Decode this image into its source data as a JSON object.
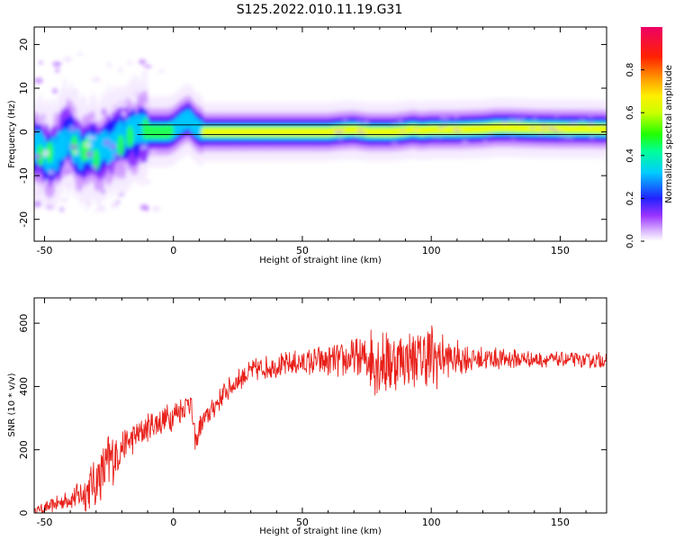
{
  "title": "S125.2022.010.11.19.G31",
  "chart_data": [
    {
      "type": "heatmap",
      "xlabel": "Height of straight line (km)",
      "ylabel": "Frequency (Hz)",
      "xlim": [
        -54,
        168
      ],
      "ylim": [
        -25,
        24
      ],
      "xticks": [
        -50,
        0,
        50,
        100,
        150
      ],
      "yticks": [
        -20,
        -10,
        0,
        10,
        20
      ],
      "colorbar": {
        "label": "Normalized spectral amplitude",
        "range": [
          0,
          1
        ],
        "ticks": [
          "0.0",
          "0.2",
          "0.4",
          "0.6",
          "0.8"
        ],
        "tick_values": [
          0.0,
          0.2,
          0.4,
          0.6,
          0.8
        ],
        "colormap": "rainbow (white-purple-blue-cyan-green-yellow-orange-red-magenta)"
      },
      "reference_lines": [
        {
          "y": 1.6,
          "color": "#000000"
        },
        {
          "y": -0.6,
          "color": "#000000"
        }
      ],
      "ridge": {
        "description": "frequency of peak spectral amplitude vs height",
        "x": [
          -52,
          -48,
          -45,
          -42,
          -40,
          -37,
          -34,
          -32,
          -30,
          -28,
          -26,
          -24,
          -22,
          -20,
          -18,
          -15,
          -12,
          -10,
          -6,
          -2,
          0,
          2,
          4,
          6,
          8,
          10,
          12,
          15,
          20,
          30,
          40,
          50,
          60,
          65,
          70,
          73,
          76,
          80,
          85,
          90,
          93,
          96,
          100,
          110,
          120,
          125,
          130,
          140,
          150,
          160,
          168
        ],
        "y": [
          -4,
          -6,
          -5,
          -1,
          -2,
          -4,
          -5,
          -4,
          -5,
          -4,
          -3,
          -2.5,
          -2,
          -1.5,
          -1,
          -0.5,
          -0.2,
          0,
          0,
          0,
          0.5,
          1.5,
          2.5,
          3,
          1.5,
          0.5,
          0,
          0,
          0,
          0,
          0,
          0,
          0,
          0.3,
          0.5,
          0.2,
          0,
          0,
          0,
          0.3,
          0.6,
          0.3,
          0.5,
          0.5,
          0.7,
          1,
          1,
          0.8,
          0.7,
          0.7,
          0.6
        ]
      }
    },
    {
      "type": "line",
      "xlabel": "Height of straight line (km)",
      "ylabel": "SNR (10 * v/v)",
      "xlim": [
        -54,
        168
      ],
      "ylim": [
        0,
        680
      ],
      "xticks": [
        -50,
        0,
        50,
        100,
        150
      ],
      "yticks": [
        0,
        200,
        400,
        600
      ],
      "color": "#e8201a",
      "envelope": {
        "description": "mean SNR level and fluctuation amplitude vs height",
        "x": [
          -54,
          -50,
          -45,
          -40,
          -35,
          -30,
          -25,
          -20,
          -15,
          -10,
          -5,
          0,
          5,
          6,
          7,
          8,
          9,
          10,
          15,
          20,
          25,
          30,
          40,
          50,
          60,
          70,
          75,
          80,
          85,
          90,
          95,
          100,
          105,
          110,
          120,
          130,
          140,
          150,
          160,
          168
        ],
        "mean": [
          8,
          15,
          30,
          45,
          60,
          100,
          160,
          210,
          240,
          270,
          290,
          310,
          340,
          370,
          330,
          250,
          220,
          270,
          330,
          380,
          420,
          450,
          465,
          475,
          480,
          485,
          490,
          490,
          480,
          490,
          485,
          490,
          490,
          490,
          488,
          487,
          486,
          484,
          483,
          485
        ],
        "amplitude": [
          10,
          20,
          25,
          35,
          60,
          90,
          110,
          60,
          50,
          50,
          50,
          50,
          40,
          60,
          40,
          40,
          40,
          40,
          40,
          40,
          40,
          40,
          40,
          45,
          55,
          70,
          90,
          150,
          110,
          90,
          100,
          140,
          70,
          60,
          40,
          35,
          30,
          25,
          25,
          30
        ]
      }
    }
  ]
}
